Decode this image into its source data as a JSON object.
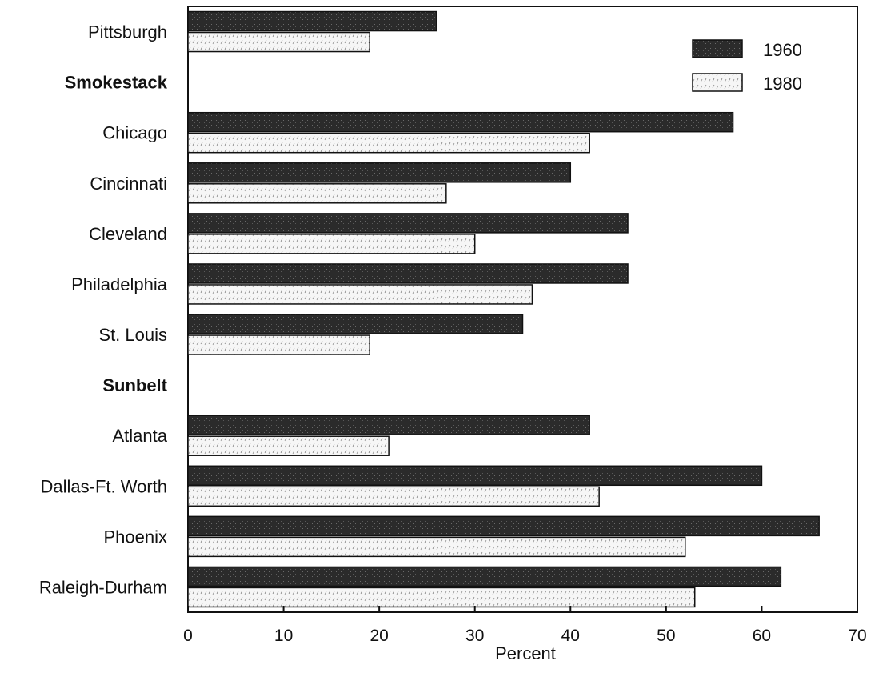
{
  "chart_data": {
    "type": "bar",
    "orientation": "horizontal",
    "categories": [
      {
        "label": "Pittsburgh",
        "kind": "city"
      },
      {
        "label": "Smokestack",
        "kind": "group"
      },
      {
        "label": "Chicago",
        "kind": "city"
      },
      {
        "label": "Cincinnati",
        "kind": "city"
      },
      {
        "label": "Cleveland",
        "kind": "city"
      },
      {
        "label": "Philadelphia",
        "kind": "city"
      },
      {
        "label": "St. Louis",
        "kind": "city"
      },
      {
        "label": "Sunbelt",
        "kind": "group"
      },
      {
        "label": "Atlanta",
        "kind": "city"
      },
      {
        "label": "Dallas-Ft. Worth",
        "kind": "city"
      },
      {
        "label": "Phoenix",
        "kind": "city"
      },
      {
        "label": "Raleigh-Durham",
        "kind": "city"
      }
    ],
    "series": [
      {
        "name": "1960",
        "color": "#2b2b2b",
        "values": [
          26,
          null,
          57,
          40,
          46,
          46,
          35,
          null,
          42,
          60,
          66,
          62
        ]
      },
      {
        "name": "1980",
        "color": "#f4f4f4",
        "values": [
          19,
          null,
          42,
          27,
          30,
          36,
          19,
          null,
          21,
          43,
          52,
          53
        ]
      }
    ],
    "xlabel": "Percent",
    "xlim": [
      0,
      70
    ],
    "xticks": [
      "0",
      "10",
      "20",
      "30",
      "40",
      "50",
      "60",
      "70"
    ],
    "legend_position": "top-right",
    "grid": false
  }
}
